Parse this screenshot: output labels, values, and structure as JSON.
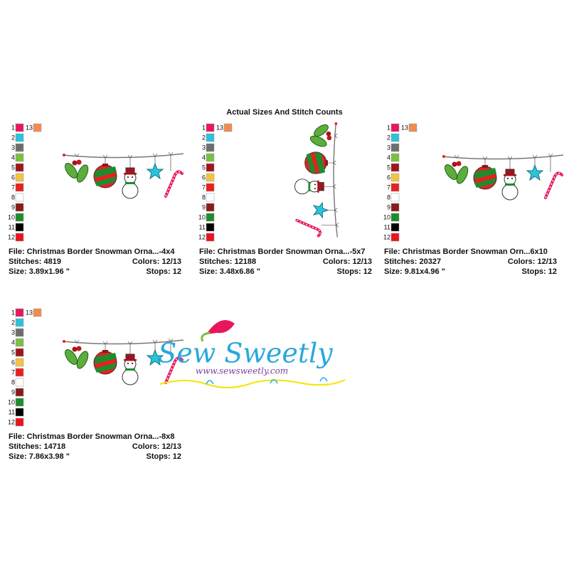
{
  "header": {
    "title": "Actual Sizes And Stitch Counts"
  },
  "palette": {
    "numbers": [
      "1",
      "2",
      "3",
      "4",
      "5",
      "6",
      "7",
      "8",
      "9",
      "10",
      "11",
      "12",
      "13"
    ],
    "colors": [
      "#e8175d",
      "#29c4dc",
      "#6d6d6d",
      "#7bc043",
      "#a0141e",
      "#f5c342",
      "#e8201e",
      "#ffffff",
      "#8b1a1a",
      "#1e8c2e",
      "#000000",
      "#e8141e",
      "#f08c50"
    ]
  },
  "panels": [
    {
      "file": "File: Christmas Border Snowman Orna...-4x4",
      "stitches": "Stitches: 4819",
      "colors": "Colors: 12/13",
      "size": "Size: 3.89x1.96 \"",
      "stops": "Stops: 12"
    },
    {
      "file": "File: Christmas Border Snowman Orna...-5x7",
      "stitches": "Stitches: 12188",
      "colors": "Colors: 12/13",
      "size": "Size: 3.48x6.86 \"",
      "stops": "Stops: 12"
    },
    {
      "file": "File: Christmas Border Snowman Orn...6x10",
      "stitches": "Stitches: 20327",
      "colors": "Colors: 12/13",
      "size": "Size: 9.81x4.96 \"",
      "stops": "Stops: 12"
    },
    {
      "file": "File: Christmas Border Snowman Orna...-8x8",
      "stitches": "Stitches: 14718",
      "colors": "Colors: 12/13",
      "size": "Size: 7.86x3.98 \"",
      "stops": "Stops: 12"
    }
  ],
  "logo": {
    "name": "Sew Sweetly",
    "url": "www.sewsweetly.com"
  }
}
